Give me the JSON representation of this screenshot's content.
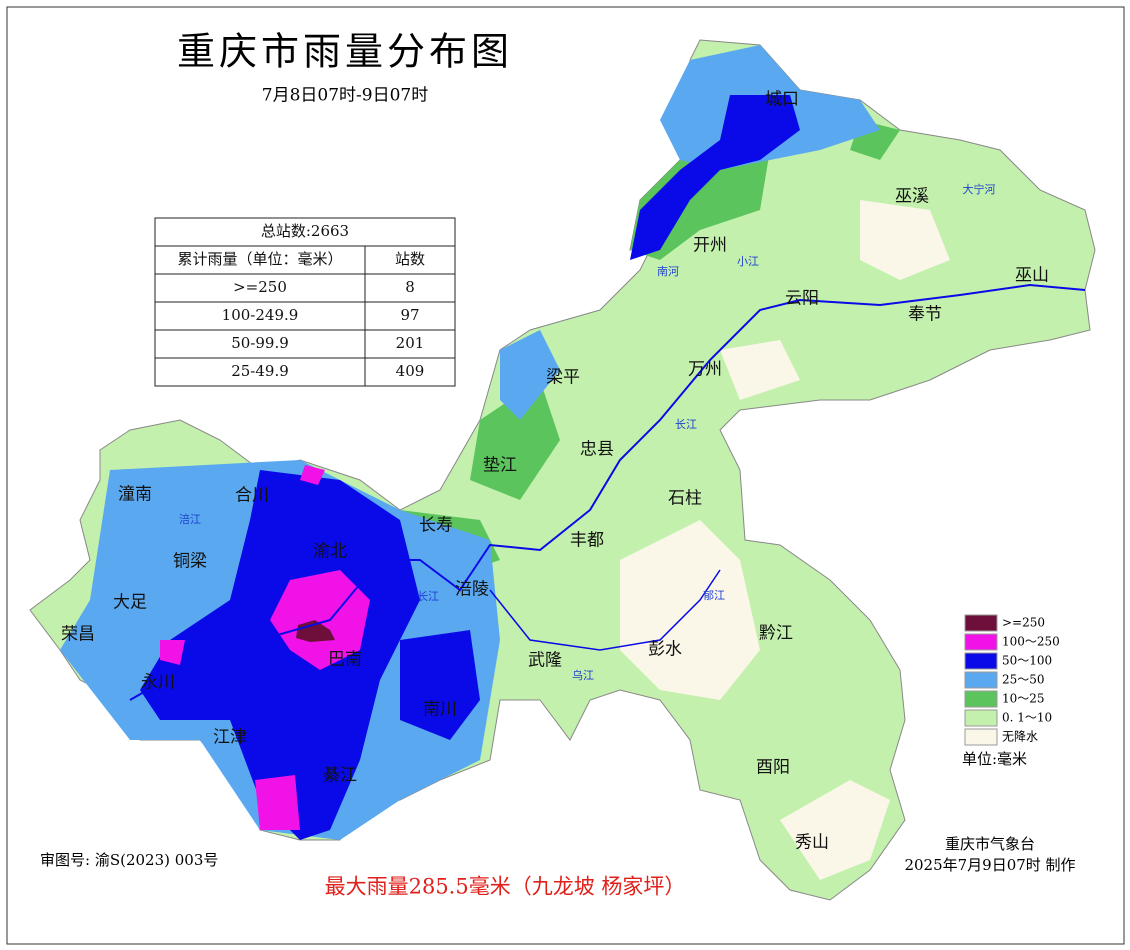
{
  "header": {
    "title": "重庆市雨量分布图",
    "subtitle": "7月8日07时-9日07时"
  },
  "table": {
    "total": "总站数:2663",
    "columns": [
      "累计雨量（单位：毫米）",
      "站数"
    ],
    "rows": [
      [
        ">=250",
        8
      ],
      [
        "100-249.9",
        97
      ],
      [
        "50-99.9",
        201
      ],
      [
        "25-49.9",
        409
      ]
    ]
  },
  "legend": {
    "items": [
      {
        "label": ">=250",
        "color": "#6d0f3a"
      },
      {
        "label": "100～250",
        "color": "#f012e6"
      },
      {
        "label": "50～100",
        "color": "#0a0ae8"
      },
      {
        "label": "25～50",
        "color": "#5aa9f0"
      },
      {
        "label": "10～25",
        "color": "#5cc45c"
      },
      {
        "label": "0. 1～10",
        "color": "#c3f0ad"
      },
      {
        "label": "无降水",
        "color": "#fbf7e8"
      }
    ],
    "unit": "单位:毫米"
  },
  "places": [
    "城口",
    "巫溪",
    "开州",
    "巫山",
    "云阳",
    "奉节",
    "梁平",
    "万州",
    "忠县",
    "垫江",
    "石柱",
    "潼南",
    "合川",
    "长寿",
    "丰都",
    "铜梁",
    "渝北",
    "大足",
    "涪陵",
    "荣昌",
    "黔江",
    "彭水",
    "武隆",
    "巴南",
    "永川",
    "南川",
    "江津",
    "綦江",
    "酉阳",
    "秀山"
  ],
  "rivers": [
    "涪江",
    "长江",
    "长江",
    "乌江",
    "郁江",
    "大宁河",
    "南河",
    "小江"
  ],
  "footer": {
    "map_number": "审图号: 渝S(2023) 003号",
    "max_rain": "最大雨量285.5毫米（九龙坡 杨家坪）",
    "issuer": "重庆市气象台",
    "issued": "2025年7月9日07时 制作"
  }
}
